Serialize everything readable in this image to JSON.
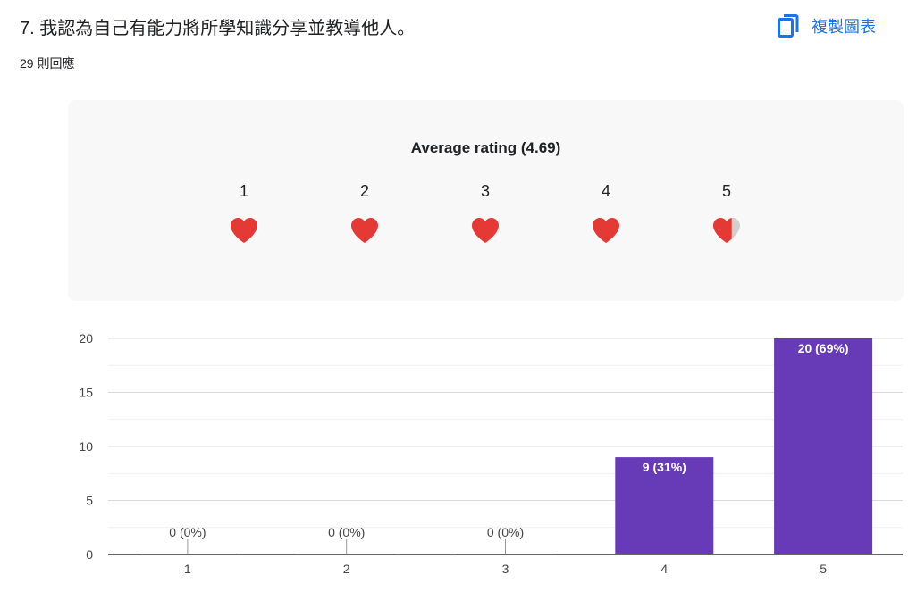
{
  "question": {
    "title": "7. 我認為自己有能力將所學知識分享並教導他人。",
    "responses": "29 則回應"
  },
  "toolbar": {
    "copy_label": "複製圖表",
    "copy_icon": "copy-icon",
    "accent": "#1a73e8"
  },
  "rating": {
    "title": "Average rating (4.69)",
    "average": 4.69,
    "scale": [
      "1",
      "2",
      "3",
      "4",
      "5"
    ],
    "icon": "heart-icon",
    "fill_color": "#e53935",
    "empty_color": "#d0d0d0"
  },
  "chart_data": {
    "type": "bar",
    "categories": [
      "1",
      "2",
      "3",
      "4",
      "5"
    ],
    "values": [
      0,
      0,
      0,
      9,
      20
    ],
    "labels": [
      "0 (0%)",
      "0 (0%)",
      "0 (0%)",
      "9 (31%)",
      "20 (69%)"
    ],
    "ylim": [
      0,
      20
    ],
    "yticks": [
      0,
      5,
      10,
      15,
      20
    ],
    "grid": true,
    "bar_color": "#673ab7",
    "xlabel": "",
    "ylabel": ""
  }
}
